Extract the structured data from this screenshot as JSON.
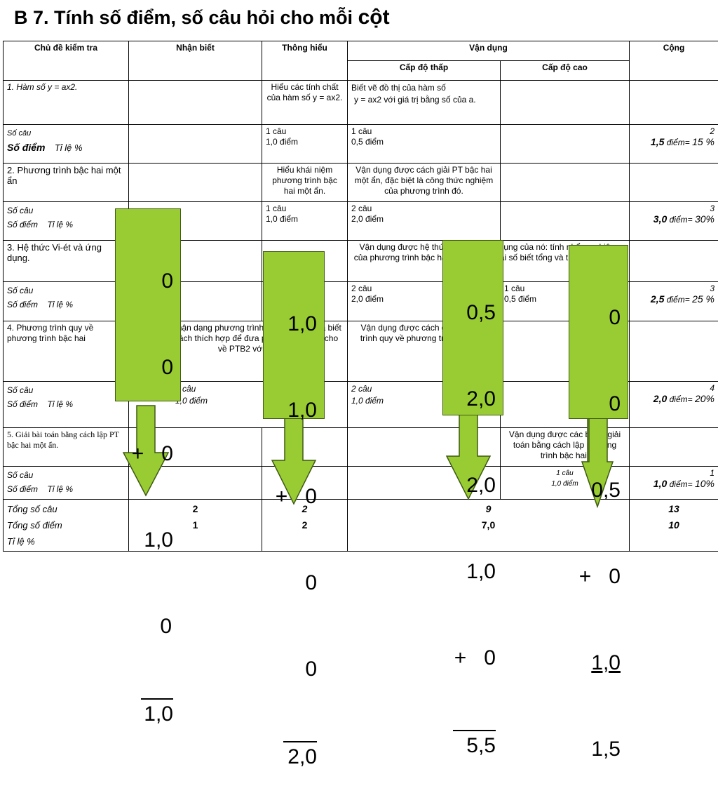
{
  "title": {
    "main": "B 7. Tính số điểm, số câu hỏi cho mỗi",
    "last": "cột"
  },
  "header": {
    "col1": "Chủ đề kiểm tra",
    "col2": "Nhận biết",
    "col3": "Thông hiểu",
    "col4": "Vận dụng",
    "col4a": "Cấp độ thấp",
    "col4b": "Cấp độ cao",
    "col5": "Cộng"
  },
  "rows": [
    {
      "topic": "1. Hàm số  y = ax2.",
      "thonghieu": "Hiểu các tính chất của hàm số y = ax2.",
      "thap_l1": "Biết vẽ đồ thị của hàm số",
      "thap_l2": "y = ax2 với giá trị bằng số của a.",
      "socau": "Số câu",
      "sodiem": "Số điểm",
      "tile": "Tỉ lệ %",
      "th_cau": "1  câu",
      "th_diem": "1,0 điểm",
      "thap_cau": "1  câu",
      "thap_diem": "0,5 điểm",
      "tot_cau": "2",
      "tot_diem": "1,5",
      "tot_label": "điểm=",
      "tot_pct": "15 %"
    },
    {
      "topic": "2. Phương trình bậc hai một ẩn",
      "thonghieu": "Hiểu khái niệm phương trình bậc hai một ẩn.",
      "thap": "Vận dụng được cách giải PT bậc hai một ẩn, đặc biệt là công thức nghiệm của phương trình đó.",
      "socau": "Số câu",
      "sodiem": "Số điểm",
      "tile": "Tỉ lệ %",
      "th_cau": "1  câu",
      "th_diem": "1,0 điểm",
      "thap_cau": "2  câu",
      "thap_diem": "2,0 điểm",
      "tot_cau": "3",
      "tot_diem": "3,0",
      "tot_label": "điểm=",
      "tot_pct": "30%"
    },
    {
      "topic": "3.   Hệ thức Vi-ét và ứng dụng.",
      "thap": "Vận dụng được hệ thức Vi-ét và ứng dụng của nó: tính nhẩm nghiệm của phương trình bậc hai một ẩn, tìm hai số biết tổng và tích của chúng.",
      "socau": "Số câu",
      "sodiem": "Số điểm",
      "tile": "Tỉ lệ %",
      "thap_cau": "2  câu",
      "thap_diem": "2,0 điểm",
      "cao_cau": "1  câu",
      "cao_diem": "0,5 điểm",
      "tot_cau": "3",
      "tot_diem": "2,5",
      "tot_label": "điểm=",
      "tot_pct": "25 %"
    },
    {
      "topic": "4. Phương trình quy về phương trình bậc hai",
      "thonghieu": "Nhận dạng phương trình quy về PTB2 và biết cách thích hợp để đưa phương trình đã cho về PTB2 với ẩn phụ.",
      "thap": "Vận dụng được cách giải phương trình quy về phương trình bậc hai.",
      "socau": "Số câu",
      "sodiem": "Số điểm",
      "tile": "Tỉ lệ %",
      "th_cau": "2 câu",
      "th_diem": "1,0 điểm",
      "thap_cau": "2 câu",
      "thap_diem": "1,0 điểm",
      "tot_cau": "4",
      "tot_diem": "2,0",
      "tot_label": "điểm=",
      "tot_pct": "20%"
    },
    {
      "topic": "5. Giải bài toán bằng cách lập PT bậc hai một ẩn.",
      "cao": "Vận dụng được các bước giải toán bằng cách lập phương trình bậc hai.",
      "socau": "Số câu",
      "sodiem": "Số điểm",
      "tile": "Tỉ lệ %",
      "cao_cau": "1  câu",
      "cao_diem": "1,0  điểm",
      "tot_cau": "1",
      "tot_diem": "1,0",
      "tot_label": "điểm=",
      "tot_pct": "10%"
    }
  ],
  "total": {
    "l1": "Tổng số câu",
    "l2": "Tổng số điểm",
    "l3": "Tỉ lệ %",
    "nb_cau": "2",
    "nb_diem": "1",
    "th_cau": "2",
    "th_diem": "2",
    "vd_cau": "9",
    "vd_diem": "7,0",
    "cong_cau": "13",
    "cong_diem": "10"
  },
  "overlays": [
    {
      "lines": [
        "0",
        "0",
        "+   0",
        "1,0",
        "0",
        "1,0"
      ]
    },
    {
      "lines": [
        "1,0",
        "1,0",
        "+   0",
        "0",
        "0",
        "2,0"
      ]
    },
    {
      "lines": [
        "0,5",
        "2,0",
        "2,0",
        "1,0",
        "+   0",
        "5,5"
      ]
    },
    {
      "lines": [
        "0",
        "0",
        "0,5",
        "+   0",
        "1,0",
        "1,5"
      ]
    }
  ],
  "colors": {
    "arrow_fill": "#99cc33",
    "arrow_stroke": "#3e5a12"
  }
}
